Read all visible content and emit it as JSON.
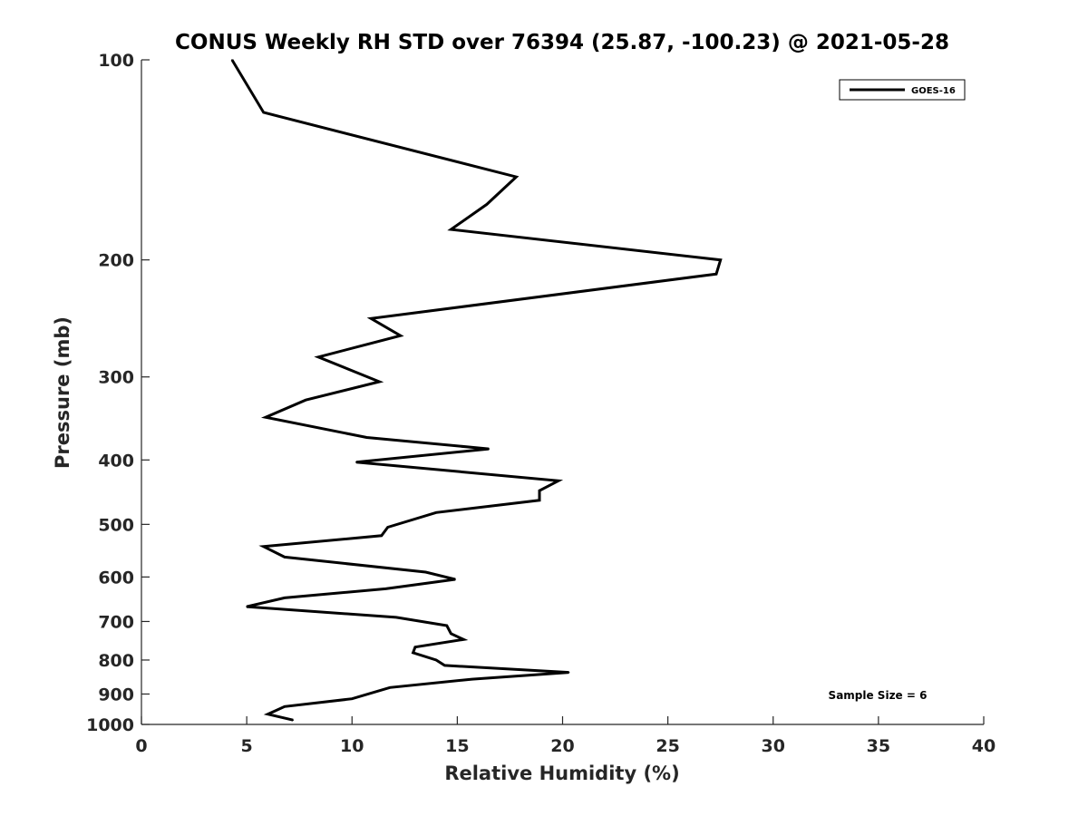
{
  "chart_data": {
    "type": "line",
    "title": "CONUS Weekly RH STD over 76394 (25.87, -100.23) @ 2021-05-28",
    "xlabel": "Relative Humidity (%)",
    "ylabel": "Pressure (mb)",
    "xlim": [
      0,
      40
    ],
    "ylim": [
      100,
      1000
    ],
    "y_scale": "log",
    "y_reversed": true,
    "x_ticks": [
      "0",
      "5",
      "10",
      "15",
      "20",
      "25",
      "30",
      "35",
      "40"
    ],
    "y_ticks": [
      "100",
      "200",
      "300",
      "400",
      "500",
      "600",
      "700",
      "800",
      "900",
      "1000"
    ],
    "grid": false,
    "legend_position": "top-right",
    "annotation": "Sample Size = 6",
    "series": [
      {
        "name": "GOES-16",
        "color": "#000000",
        "x": [
          4.3,
          5.8,
          17.8,
          16.4,
          14.7,
          27.5,
          27.3,
          10.9,
          12.3,
          8.4,
          11.3,
          7.8,
          5.9,
          10.7,
          16.5,
          10.2,
          19.8,
          18.9,
          18.9,
          14.0,
          11.7,
          11.4,
          5.8,
          6.8,
          13.5,
          14.9,
          11.6,
          6.8,
          5.0,
          12.1,
          14.5,
          14.7,
          15.3,
          13.0,
          12.9,
          14.0,
          14.4,
          20.3,
          15.7,
          11.8,
          10.0,
          6.8,
          6.0,
          7.2
        ],
        "y": [
          100,
          120,
          150,
          165,
          180,
          200,
          210,
          245,
          260,
          280,
          305,
          325,
          345,
          370,
          385,
          403,
          430,
          445,
          460,
          480,
          505,
          520,
          540,
          560,
          590,
          605,
          625,
          645,
          665,
          690,
          710,
          730,
          745,
          765,
          780,
          800,
          815,
          835,
          855,
          880,
          915,
          940,
          965,
          985
        ]
      }
    ]
  }
}
